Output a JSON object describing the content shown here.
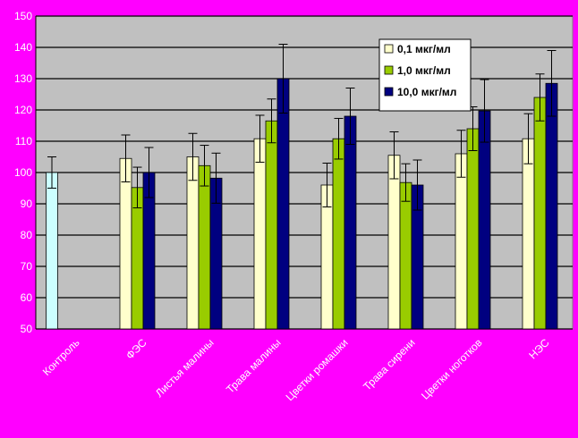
{
  "chart_data": {
    "type": "bar",
    "ylim": [
      50,
      150
    ],
    "yticks": [
      50,
      60,
      70,
      80,
      90,
      100,
      110,
      120,
      130,
      140,
      150
    ],
    "grid": true,
    "legend_position": "top-right",
    "categories": [
      "Контроль",
      "ФЭС",
      "Листья малины",
      "Трава малины",
      "Цветки ромашки",
      "Трава сирени",
      "Цветки ноготков",
      "НЭС"
    ],
    "control": {
      "category_index": 0,
      "value": 100,
      "error": 5,
      "color": "#ccffff"
    },
    "series": [
      {
        "name": "0,1 мкг/мл",
        "color": "#ffffcc",
        "values": [
          null,
          104.5,
          105,
          110.8,
          96,
          105.5,
          106,
          110.8
        ],
        "errors": [
          null,
          7.5,
          7.5,
          7.5,
          7,
          7.5,
          7.5,
          8
        ]
      },
      {
        "name": "1,0 мкг/мл",
        "color": "#99cc00",
        "values": [
          null,
          95.2,
          102.2,
          116.5,
          110.8,
          96.8,
          114,
          124
        ],
        "errors": [
          null,
          6.5,
          6.5,
          7,
          6.5,
          6,
          7,
          7.5
        ]
      },
      {
        "name": "10,0 мкг/мл",
        "color": "#000080",
        "values": [
          null,
          100,
          98.2,
          130,
          118,
          96,
          119.7,
          128.5
        ],
        "errors": [
          null,
          8,
          8,
          11,
          9,
          8,
          10,
          10.5
        ]
      }
    ]
  }
}
